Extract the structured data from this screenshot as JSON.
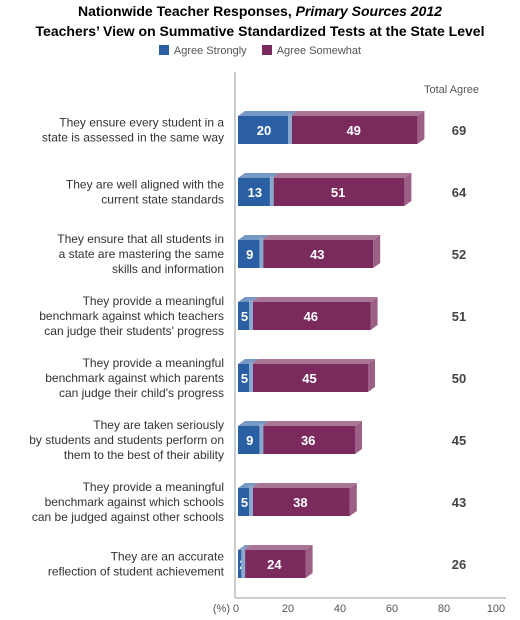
{
  "title_line1_prefix": "Nationwide Teacher Responses, ",
  "title_line1_italic": "Primary Sources 2012",
  "title_line2": "Teachers’ View on Summative Standardized Tests at the State Level",
  "total_header": "Total Agree",
  "axis_unit_label": "(%)",
  "colors": {
    "agree_strongly": "#2b5fa3",
    "agree_somewhat": "#7b2a5d",
    "axis": "#999999",
    "label_text": "#333333"
  },
  "chart_data": {
    "type": "bar",
    "orientation": "horizontal",
    "stacked": true,
    "categories": [
      [
        "They ensure every student in a",
        "state is assessed in the same way"
      ],
      [
        "They are well aligned with the",
        "current state standards"
      ],
      [
        "They ensure that all students in",
        "a state are mastering the same",
        "skills and information"
      ],
      [
        "They provide a meaningful",
        "benchmark against which teachers",
        "can judge their students' progress"
      ],
      [
        "They provide a meaningful",
        "benchmark against which parents",
        "can judge their child's progress"
      ],
      [
        "They are taken seriously",
        "by students and students perform on",
        "them to the best of their ability"
      ],
      [
        "They provide a meaningful",
        "benchmark against which schools",
        "can be judged against other schools"
      ],
      [
        "They are an accurate",
        "reflection of student achievement"
      ]
    ],
    "series": [
      {
        "name": "Agree Strongly",
        "values": [
          20,
          13,
          9,
          5,
          5,
          9,
          5,
          2
        ]
      },
      {
        "name": "Agree Somewhat",
        "values": [
          49,
          51,
          43,
          46,
          45,
          36,
          38,
          24
        ]
      }
    ],
    "totals": [
      69,
      64,
      52,
      51,
      50,
      45,
      43,
      26
    ],
    "xlim": [
      0,
      100
    ],
    "xticks": [
      0,
      20,
      40,
      60,
      80,
      100
    ],
    "legend_position": "top"
  }
}
